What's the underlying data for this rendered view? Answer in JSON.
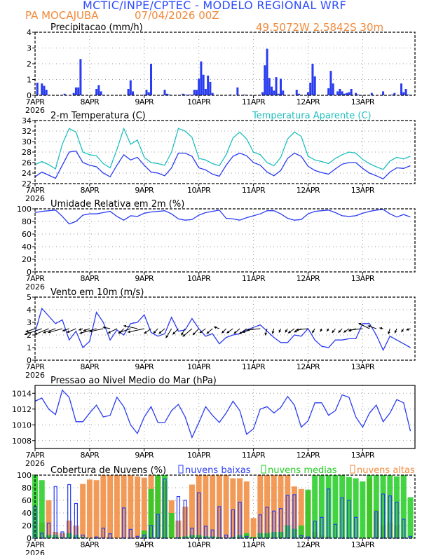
{
  "header": {
    "title": "MCTIC/INPE/CPTEC - MODELO REGIONAL WRF",
    "location": "PA MOCAJUBA",
    "run": "07/04/2026 00Z",
    "coords": "49.5072W 2.5842S 30m"
  },
  "colors": {
    "title": "#2f4cff",
    "orange": "#f08a3c",
    "blue": "#2a3cf0",
    "cyan": "#1fbfbf",
    "green": "#22cc22"
  },
  "x_axis": {
    "tick_labels": [
      "7APR",
      "8APR",
      "9APR",
      "10APR",
      "11APR",
      "12APR",
      "13APR"
    ],
    "year_label": "2026",
    "hours": [
      0,
      3,
      6,
      9,
      12,
      15,
      18,
      21,
      24,
      27,
      30,
      33,
      36,
      39,
      42,
      45,
      48,
      51,
      54,
      57,
      60,
      63,
      66,
      69,
      72,
      75,
      78,
      81,
      84,
      87,
      90,
      93,
      96,
      99,
      102,
      105,
      108,
      111,
      114,
      117,
      120,
      123,
      126,
      129,
      132,
      135,
      138,
      141,
      144,
      147,
      150,
      153,
      156,
      159,
      162,
      165
    ],
    "range_hours": [
      0,
      167
    ]
  },
  "chart_data": [
    {
      "type": "bar",
      "title": "Precipitacao (mm/h)",
      "ylim": [
        0,
        4
      ],
      "yticks": [
        0,
        1,
        2,
        3,
        4
      ],
      "grid": true,
      "points": [
        [
          1,
          0.8
        ],
        [
          3,
          0.75
        ],
        [
          4,
          0.6
        ],
        [
          5,
          0.35
        ],
        [
          13,
          0.1
        ],
        [
          17,
          0.15
        ],
        [
          18,
          0.5
        ],
        [
          19,
          0.5
        ],
        [
          20,
          2.3
        ],
        [
          27,
          0.4
        ],
        [
          28,
          0.65
        ],
        [
          29,
          0.25
        ],
        [
          41,
          0.4
        ],
        [
          42,
          0.95
        ],
        [
          43,
          0.25
        ],
        [
          48,
          0.05
        ],
        [
          49,
          0.35
        ],
        [
          50,
          0.2
        ],
        [
          51,
          2.0
        ],
        [
          57,
          0.35
        ],
        [
          58,
          0.1
        ],
        [
          59,
          0.05
        ],
        [
          65,
          0.1
        ],
        [
          66,
          0.05
        ],
        [
          68,
          0.05
        ],
        [
          70,
          0.35
        ],
        [
          71,
          0.35
        ],
        [
          72,
          1.05
        ],
        [
          73,
          2.15
        ],
        [
          74,
          1.3
        ],
        [
          75,
          0.4
        ],
        [
          76,
          1.25
        ],
        [
          77,
          0.85
        ],
        [
          78,
          0.15
        ],
        [
          86,
          0.05
        ],
        [
          89,
          0.5
        ],
        [
          92,
          0.05
        ],
        [
          100,
          0.2
        ],
        [
          101,
          1.9
        ],
        [
          102,
          2.95
        ],
        [
          103,
          1.1
        ],
        [
          104,
          0.55
        ],
        [
          105,
          0.3
        ],
        [
          106,
          1.15
        ],
        [
          107,
          0.1
        ],
        [
          108,
          1.05
        ],
        [
          109,
          0.3
        ],
        [
          115,
          0.35
        ],
        [
          116,
          0.1
        ],
        [
          120,
          0.2
        ],
        [
          121,
          0.8
        ],
        [
          122,
          2.0
        ],
        [
          123,
          1.2
        ],
        [
          129,
          0.45
        ],
        [
          130,
          1.55
        ],
        [
          131,
          0.75
        ],
        [
          133,
          0.25
        ],
        [
          134,
          0.4
        ],
        [
          135,
          0.25
        ],
        [
          136,
          0.1
        ],
        [
          137,
          0.15
        ],
        [
          138,
          0.2
        ],
        [
          139,
          0.4
        ],
        [
          141,
          0.15
        ],
        [
          142,
          0.05
        ],
        [
          148,
          0.15
        ],
        [
          153,
          0.25
        ],
        [
          157,
          0.05
        ],
        [
          158,
          0.15
        ],
        [
          161,
          0.75
        ],
        [
          162,
          0.2
        ],
        [
          163,
          0.4
        ],
        [
          164,
          0.05
        ]
      ]
    },
    {
      "type": "line",
      "title": "2-m Temperatura (C)",
      "ylim": [
        22,
        34
      ],
      "yticks": [
        22,
        24,
        26,
        28,
        30,
        32,
        34
      ],
      "grid": true,
      "series": [
        {
          "name": "",
          "values": [
            23.3,
            24.2,
            23.6,
            23.0,
            25.5,
            28.0,
            28.2,
            26.0,
            25.5,
            25.2,
            24.0,
            23.3,
            25.5,
            27.5,
            26.5,
            27.0,
            25.5,
            24.2,
            24.0,
            23.5,
            25.0,
            27.8,
            27.8,
            27.2,
            25.0,
            24.6,
            23.8,
            23.4,
            25.5,
            27.2,
            27.8,
            27.3,
            26.0,
            25.5,
            24.2,
            23.5,
            24.5,
            26.8,
            27.8,
            27.2,
            25.3,
            24.5,
            24.1,
            23.8,
            24.8,
            25.7,
            26.0,
            26.0,
            24.9,
            24.0,
            23.5,
            22.9,
            24.2,
            25.0,
            24.9,
            25.4
          ]
        },
        {
          "name": "Temperatura Aparente (C)",
          "values": [
            25.6,
            26.2,
            25.6,
            24.8,
            29.5,
            32.5,
            31.8,
            28.0,
            27.5,
            27.3,
            25.8,
            25.0,
            28.5,
            32.5,
            29.5,
            30.3,
            27.0,
            26.0,
            25.8,
            25.5,
            28.0,
            32.5,
            32.0,
            30.8,
            26.8,
            26.5,
            25.8,
            25.4,
            27.5,
            30.7,
            31.8,
            30.5,
            28.0,
            27.5,
            26.0,
            25.4,
            27.0,
            30.5,
            31.8,
            31.0,
            27.2,
            26.5,
            26.2,
            25.8,
            26.8,
            27.5,
            28.0,
            27.8,
            26.6,
            25.8,
            25.2,
            24.7,
            26.3,
            27.0,
            26.7,
            27.2
          ]
        }
      ]
    },
    {
      "type": "line",
      "title": "Umidade Relativa em 2m (%)",
      "ylim": [
        0,
        100
      ],
      "yticks": [
        0,
        20,
        40,
        60,
        80,
        100
      ],
      "grid": true,
      "values": [
        94,
        96,
        97,
        98,
        88,
        76,
        80,
        90,
        92,
        92,
        94,
        96,
        88,
        82,
        89,
        88,
        93,
        95,
        96,
        97,
        92,
        84,
        82,
        83,
        90,
        94,
        96,
        98,
        85,
        84,
        82,
        86,
        89,
        92,
        97,
        97,
        92,
        85,
        82,
        83,
        92,
        96,
        97,
        98,
        94,
        89,
        88,
        89,
        93,
        96,
        98,
        99,
        92,
        87,
        91,
        87
      ]
    },
    {
      "type": "line",
      "title": "Vento em 10m (m/s)",
      "ylim": [
        0,
        5
      ],
      "yticks": [
        0,
        1,
        2,
        3,
        4,
        5
      ],
      "grid": true,
      "values": [
        2.2,
        4.1,
        3.5,
        2.9,
        3.2,
        1.6,
        2.3,
        1.0,
        1.5,
        3.8,
        3.0,
        1.6,
        2.4,
        2.0,
        2.9,
        3.0,
        3.6,
        2.2,
        1.9,
        2.1,
        3.4,
        2.3,
        2.4,
        3.3,
        2.5,
        1.9,
        2.1,
        1.3,
        1.8,
        2.0,
        2.1,
        2.4,
        2.6,
        2.8,
        2.3,
        1.8,
        1.4,
        1.4,
        2.0,
        1.9,
        2.5,
        1.6,
        1.1,
        1.0,
        1.6,
        1.6,
        1.7,
        1.7,
        2.9,
        2.9,
        2.0,
        0.8,
        1.9,
        1.6,
        1.3,
        1.0
      ],
      "direction_from_deg": [
        60,
        60,
        55,
        60,
        65,
        60,
        55,
        60,
        60,
        65,
        70,
        110,
        50,
        30,
        60,
        110,
        70,
        40,
        30,
        35,
        20,
        30,
        20,
        35,
        30,
        40,
        35,
        120,
        30,
        40,
        35,
        40,
        60,
        80,
        10,
        10,
        15,
        20,
        40,
        50,
        80,
        20,
        15,
        20,
        25,
        30,
        40,
        60,
        80,
        130,
        120,
        110,
        10,
        15,
        20,
        60
      ]
    },
    {
      "type": "line",
      "title": "Pressao ao Nivel Medio do Mar (hPa)",
      "ylim": [
        1007,
        1015
      ],
      "yticks": [
        1008,
        1010,
        1012,
        1014
      ],
      "grid": true,
      "values": [
        1013.0,
        1013.4,
        1012.0,
        1011.3,
        1014.4,
        1013.5,
        1010.4,
        1010.4,
        1011.5,
        1012.5,
        1011.0,
        1011.2,
        1013.5,
        1012.3,
        1010.0,
        1008.9,
        1011.0,
        1012.3,
        1010.3,
        1010.3,
        1011.8,
        1012.6,
        1011.0,
        1008.4,
        1010.3,
        1012.3,
        1011.2,
        1010.3,
        1011.5,
        1013.0,
        1011.8,
        1008.8,
        1009.5,
        1012.0,
        1012.3,
        1011.5,
        1012.2,
        1013.6,
        1012.5,
        1009.7,
        1010.5,
        1012.8,
        1012.8,
        1011.2,
        1011.8,
        1013.8,
        1013.5,
        1011.0,
        1009.7,
        1011.5,
        1012.5,
        1010.4,
        1011.5,
        1013.2,
        1012.8,
        1009.2
      ]
    },
    {
      "type": "bar",
      "title": "Cobertura de Nuvens (%)",
      "ylim": [
        0,
        100
      ],
      "yticks": [
        0,
        20,
        40,
        60,
        80,
        100
      ],
      "grid": true,
      "series": [
        {
          "name": "nuvens altas",
          "values": [
            0,
            25,
            60,
            10,
            8,
            28,
            20,
            86,
            93,
            92,
            100,
            100,
            100,
            100,
            100,
            98,
            96,
            100,
            100,
            90,
            60,
            28,
            50,
            85,
            100,
            100,
            100,
            100,
            100,
            95,
            95,
            90,
            32,
            100,
            100,
            100,
            100,
            100,
            82,
            78,
            75,
            10,
            5,
            3,
            0,
            0,
            0,
            0,
            0,
            95,
            45,
            20,
            25,
            20,
            0,
            0
          ]
        },
        {
          "name": "nuvens medias",
          "values": [
            100,
            92,
            5,
            5,
            2,
            8,
            5,
            2,
            0,
            0,
            0,
            0,
            0,
            0,
            0,
            0,
            12,
            78,
            100,
            100,
            40,
            2,
            3,
            5,
            5,
            3,
            3,
            2,
            0,
            2,
            5,
            8,
            2,
            8,
            8,
            10,
            10,
            20,
            15,
            20,
            77,
            100,
            100,
            100,
            100,
            100,
            97,
            95,
            90,
            100,
            100,
            100,
            100,
            98,
            100,
            65
          ]
        },
        {
          "name": "nuvens baixas",
          "values": [
            50,
            8,
            24,
            82,
            10,
            85,
            55,
            5,
            0,
            2,
            16,
            7,
            0,
            48,
            14,
            3,
            5,
            20,
            38,
            94,
            0,
            66,
            60,
            16,
            72,
            19,
            13,
            50,
            5,
            45,
            57,
            3,
            0,
            37,
            49,
            43,
            47,
            68,
            69,
            4,
            2,
            27,
            33,
            78,
            22,
            64,
            60,
            33,
            0,
            0,
            42,
            70,
            67,
            57,
            30,
            3
          ]
        }
      ]
    }
  ]
}
